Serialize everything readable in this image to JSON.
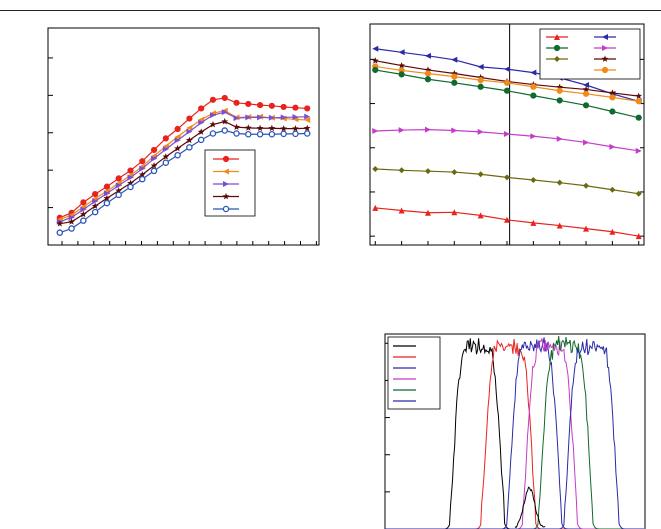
{
  "colors": {
    "red": "#e8231d",
    "orange": "#f28a1a",
    "purple": "#7b4fd1",
    "magenta": "#c43cc8",
    "darkred": "#5a0a0a",
    "blue": "#2a55b8",
    "green": "#0f6a2e",
    "olive": "#6b6a10",
    "navy": "#2a2aa8",
    "black": "#000000"
  },
  "chart_data": [
    {
      "type": "line",
      "panel": "left",
      "x": [
        1,
        2,
        3,
        4,
        5,
        6,
        7,
        8,
        9,
        10,
        11,
        12,
        13,
        14,
        15,
        16,
        17,
        18,
        19,
        20,
        21,
        22
      ],
      "series": [
        {
          "key": "red",
          "color": "#e8231d",
          "marker": "circle",
          "values": [
            0.73,
            0.86,
            1.14,
            1.36,
            1.56,
            1.78,
            1.99,
            2.24,
            2.54,
            2.85,
            3.1,
            3.38,
            3.65,
            3.88,
            3.93,
            3.8,
            3.77,
            3.74,
            3.72,
            3.69,
            3.67,
            3.65
          ]
        },
        {
          "key": "orange",
          "color": "#f28a1a",
          "marker": "tri-left",
          "values": [
            0.68,
            0.8,
            1.02,
            1.24,
            1.44,
            1.65,
            1.86,
            2.1,
            2.38,
            2.64,
            2.89,
            3.13,
            3.35,
            3.52,
            3.59,
            3.41,
            3.42,
            3.43,
            3.4,
            3.38,
            3.36,
            3.34
          ]
        },
        {
          "key": "purple",
          "color": "#7b4fd1",
          "marker": "tri-right",
          "values": [
            0.62,
            0.74,
            0.95,
            1.17,
            1.38,
            1.59,
            1.8,
            2.04,
            2.31,
            2.56,
            2.8,
            3.03,
            3.27,
            3.47,
            3.55,
            3.39,
            3.41,
            3.41,
            3.4,
            3.41,
            3.42,
            3.43
          ]
        },
        {
          "key": "darkred",
          "color": "#5a0a0a",
          "marker": "star",
          "values": [
            0.57,
            0.62,
            0.82,
            1.04,
            1.25,
            1.45,
            1.65,
            1.88,
            2.12,
            2.36,
            2.58,
            2.8,
            3.02,
            3.22,
            3.3,
            3.15,
            3.13,
            3.12,
            3.12,
            3.11,
            3.11,
            3.12
          ]
        },
        {
          "key": "blue",
          "color": "#2a55b8",
          "marker": "circle-open",
          "values": [
            0.33,
            0.44,
            0.65,
            0.88,
            1.12,
            1.34,
            1.55,
            1.76,
            1.98,
            2.2,
            2.4,
            2.61,
            2.81,
            2.98,
            3.06,
            2.98,
            2.96,
            2.96,
            2.96,
            2.97,
            2.97,
            2.98
          ]
        }
      ],
      "ylim": [
        0,
        5.8
      ],
      "xlim": [
        0,
        23
      ],
      "legend_placement": "center-right",
      "grid": false
    },
    {
      "type": "line",
      "panel": "right",
      "x": [
        0,
        1,
        2,
        3,
        4,
        5,
        6,
        7,
        8,
        9,
        10
      ],
      "series": [
        {
          "key": "navy",
          "color": "#2a2aa8",
          "marker": "tri-left",
          "values": [
            2.24,
            2.16,
            2.08,
            1.99,
            1.83,
            1.78,
            1.7,
            1.58,
            1.42,
            1.22,
            1.05
          ]
        },
        {
          "key": "darkred",
          "color": "#5a0a0a",
          "marker": "star",
          "values": [
            1.97,
            1.86,
            1.76,
            1.68,
            1.59,
            1.5,
            1.43,
            1.37,
            1.32,
            1.24,
            1.17
          ]
        },
        {
          "key": "orange",
          "color": "#f28a1a",
          "marker": "circle",
          "values": [
            1.84,
            1.75,
            1.68,
            1.61,
            1.53,
            1.47,
            1.38,
            1.29,
            1.22,
            1.14,
            1.05
          ]
        },
        {
          "key": "green",
          "color": "#0f6a2e",
          "marker": "circle",
          "values": [
            1.76,
            1.66,
            1.55,
            1.47,
            1.38,
            1.29,
            1.18,
            1.07,
            0.96,
            0.82,
            0.68
          ]
        },
        {
          "key": "magenta",
          "color": "#c43cc8",
          "marker": "tri-right",
          "values": [
            0.38,
            0.4,
            0.41,
            0.39,
            0.36,
            0.31,
            0.26,
            0.2,
            0.12,
            0.02,
            -0.07
          ]
        },
        {
          "key": "olive",
          "color": "#6b6a10",
          "marker": "diamond",
          "values": [
            -0.48,
            -0.51,
            -0.53,
            -0.55,
            -0.6,
            -0.67,
            -0.73,
            -0.79,
            -0.86,
            -0.95,
            -1.04
          ]
        },
        {
          "key": "red",
          "color": "#e8231d",
          "marker": "tri-up",
          "values": [
            -1.36,
            -1.42,
            -1.47,
            -1.46,
            -1.53,
            -1.63,
            -1.7,
            -1.76,
            -1.83,
            -1.9,
            -2.0
          ]
        }
      ],
      "ylim": [
        -2.2,
        2.8
      ],
      "xlim": [
        -0.2,
        10.2
      ],
      "vline_x": 5.1,
      "legend_placement": "top-right",
      "grid": false
    },
    {
      "type": "line",
      "panel": "bottom-right",
      "xlim": [
        0,
        1
      ],
      "ylim": [
        0,
        1.05
      ],
      "series": [
        {
          "key": "black",
          "color": "#000000",
          "center": 0.355,
          "width": 0.105
        },
        {
          "key": "red",
          "color": "#e8231d",
          "center": 0.475,
          "width": 0.105
        },
        {
          "key": "navy",
          "color": "#2a2aa8",
          "center": 0.575,
          "width": 0.105
        },
        {
          "key": "magenta",
          "color": "#c43cc8",
          "center": 0.635,
          "width": 0.105
        },
        {
          "key": "green",
          "color": "#0f6a2e",
          "center": 0.695,
          "width": 0.105
        },
        {
          "key": "navy2",
          "color": "#2a2aa8",
          "center": 0.795,
          "width": 0.105
        }
      ],
      "legend_placement": "top-left",
      "grid": false
    }
  ]
}
